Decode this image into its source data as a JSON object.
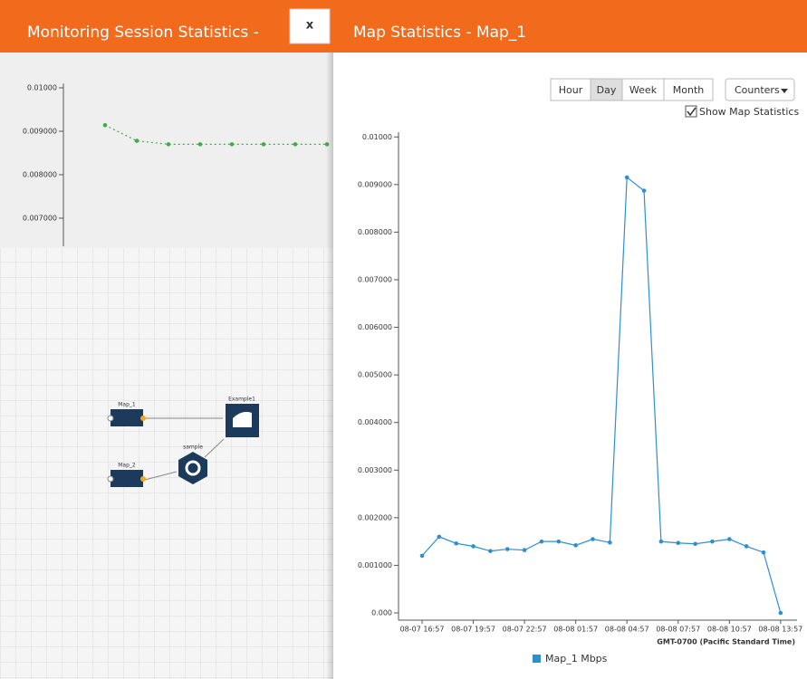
{
  "left_panel": {
    "title": "Monitoring Session Statistics -",
    "close": "x",
    "chart": {
      "type": "line",
      "color": "#3cb043",
      "values": [
        0.00914,
        0.00878,
        0.0087,
        0.0087,
        0.0087,
        0.0087,
        0.0087,
        0.0087
      ],
      "ylim": [
        0.00632,
        0.0101
      ],
      "yticks": [
        {
          "value": 0.01,
          "label": "0.01000"
        },
        {
          "value": 0.009,
          "label": "0.009000"
        },
        {
          "value": 0.008,
          "label": "0.008000"
        },
        {
          "value": 0.007,
          "label": "0.007000"
        }
      ]
    },
    "diagram": {
      "nodes": [
        {
          "label": "Map_1"
        },
        {
          "label": "Map_2"
        },
        {
          "label": "sample"
        },
        {
          "label": "Example1"
        }
      ]
    }
  },
  "right_panel": {
    "title": "Map Statistics - Map_1",
    "buttons": [
      "Hour",
      "Day",
      "Week",
      "Month"
    ],
    "active_button": 1,
    "counters": "Counters",
    "checkbox": {
      "label": "Show Map Statistics",
      "checked": true
    },
    "chart": {
      "type": "line",
      "color": "#2e8fcf",
      "categories": [
        "08-07 16:57",
        null,
        null,
        "08-07 19:57",
        null,
        null,
        "08-07 22:57",
        null,
        null,
        "08-08 01:57",
        null,
        null,
        "08-08 04:57",
        null,
        null,
        "08-08 07:57",
        null,
        null,
        "08-08 10:57",
        null,
        null,
        "08-08 13:57"
      ],
      "series": [
        {
          "name": "Map_1 Mbps",
          "color": "#2e8fcf",
          "values": [
            0.0012,
            0.0016,
            0.00146,
            0.0014,
            0.0013,
            0.00134,
            0.00132,
            0.0015,
            0.0015,
            0.00142,
            0.00155,
            0.00148,
            0.00915,
            0.00887,
            0.0015,
            0.00147,
            0.00145,
            0.0015,
            0.00155,
            0.0014,
            0.00127,
            0
          ]
        }
      ],
      "ylim": [
        0,
        0.0101
      ],
      "yticks": [
        {
          "value": 0,
          "label": "0.000"
        },
        {
          "value": 0.001,
          "label": "0.001000"
        },
        {
          "value": 0.002,
          "label": "0.002000"
        },
        {
          "value": 0.003,
          "label": "0.003000"
        },
        {
          "value": 0.004,
          "label": "0.004000"
        },
        {
          "value": 0.005,
          "label": "0.005000"
        },
        {
          "value": 0.006,
          "label": "0.006000"
        },
        {
          "value": 0.007,
          "label": "0.007000"
        },
        {
          "value": 0.008,
          "label": "0.008000"
        },
        {
          "value": 0.009,
          "label": "0.009000"
        },
        {
          "value": 0.01,
          "label": "0.01000"
        }
      ],
      "xlabel": "GMT-0700 (Pacific Standard Time)",
      "legend": "bottom"
    }
  }
}
